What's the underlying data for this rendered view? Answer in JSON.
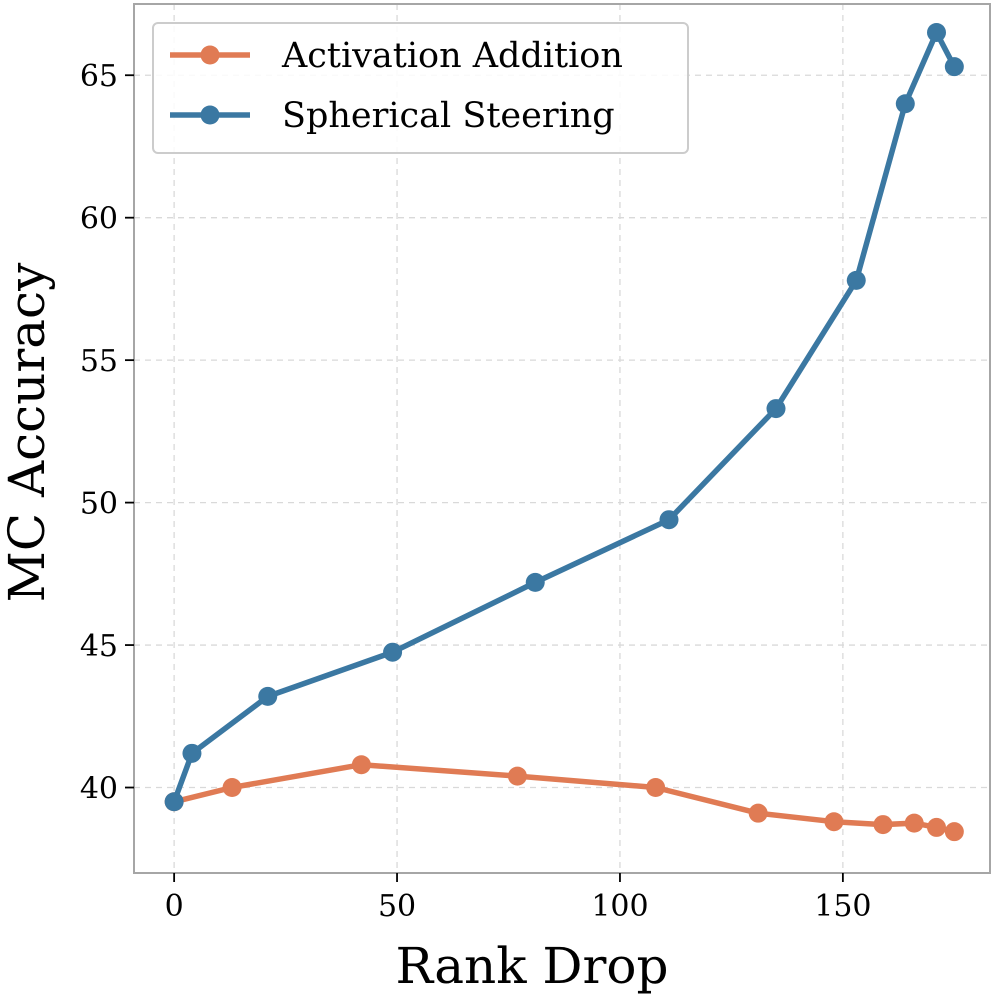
{
  "chart_data": {
    "type": "line",
    "title": "",
    "xlabel": "Rank Drop",
    "ylabel": "MC Accuracy",
    "xlim": [
      -9,
      183
    ],
    "ylim": [
      37.0,
      67.5
    ],
    "xticks": [
      0,
      50,
      100,
      150
    ],
    "yticks": [
      40,
      45,
      50,
      55,
      60,
      65
    ],
    "grid": true,
    "legend_position": "top-left",
    "series": [
      {
        "name": "Activation Addition",
        "color": "#e07b54",
        "x": [
          0,
          13,
          42,
          77,
          108,
          131,
          148,
          159,
          166,
          171,
          175
        ],
        "y": [
          39.5,
          40.0,
          40.8,
          40.4,
          40.0,
          39.1,
          38.8,
          38.7,
          38.75,
          38.6,
          38.45
        ]
      },
      {
        "name": "Spherical Steering",
        "color": "#3b78a2",
        "x": [
          0,
          4,
          21,
          49,
          81,
          111,
          135,
          153,
          164,
          171,
          175
        ],
        "y": [
          39.5,
          41.2,
          43.2,
          44.75,
          47.2,
          49.4,
          53.3,
          57.8,
          64.0,
          66.5,
          65.3
        ]
      }
    ]
  }
}
